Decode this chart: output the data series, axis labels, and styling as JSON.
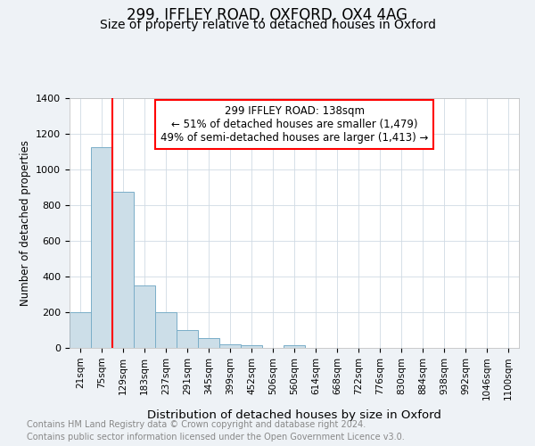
{
  "title": "299, IFFLEY ROAD, OXFORD, OX4 4AG",
  "subtitle": "Size of property relative to detached houses in Oxford",
  "xlabel": "Distribution of detached houses by size in Oxford",
  "ylabel": "Number of detached properties",
  "bar_labels": [
    "21sqm",
    "75sqm",
    "129sqm",
    "183sqm",
    "237sqm",
    "291sqm",
    "345sqm",
    "399sqm",
    "452sqm",
    "506sqm",
    "560sqm",
    "614sqm",
    "668sqm",
    "722sqm",
    "776sqm",
    "830sqm",
    "884sqm",
    "938sqm",
    "992sqm",
    "1046sqm",
    "1100sqm"
  ],
  "bar_values": [
    200,
    1125,
    875,
    350,
    200,
    100,
    55,
    20,
    15,
    0,
    15,
    0,
    0,
    0,
    0,
    0,
    0,
    0,
    0,
    0,
    0
  ],
  "bar_color": "#ccdee8",
  "bar_edgecolor": "#7aaec8",
  "red_line_index": 2,
  "annotation_text": "299 IFFLEY ROAD: 138sqm\n← 51% of detached houses are smaller (1,479)\n49% of semi-detached houses are larger (1,413) →",
  "ylim": [
    0,
    1400
  ],
  "footnote1": "Contains HM Land Registry data © Crown copyright and database right 2024.",
  "footnote2": "Contains public sector information licensed under the Open Government Licence v3.0.",
  "background_color": "#eef2f6",
  "plot_background": "#ffffff",
  "grid_color": "#d0dae4",
  "title_fontsize": 12,
  "subtitle_fontsize": 10,
  "footnote_color": "#888888"
}
